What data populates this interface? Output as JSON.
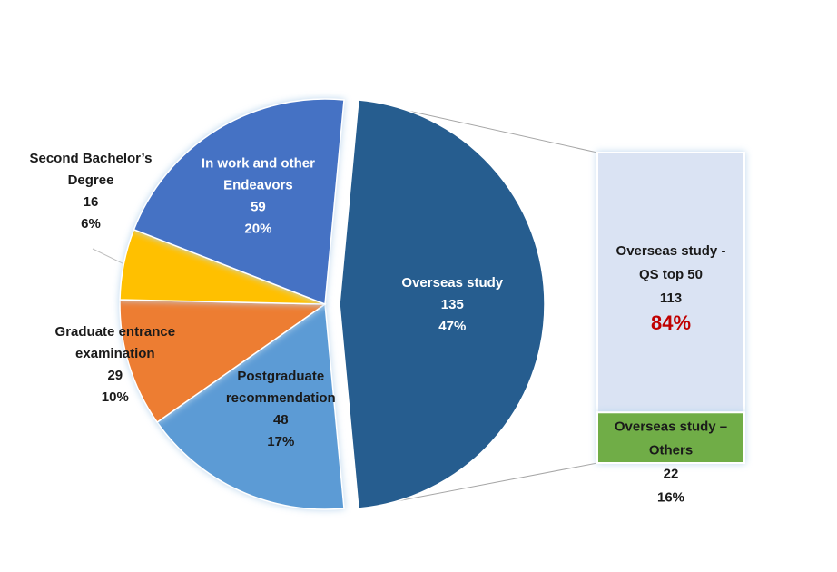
{
  "colors": {
    "overseas": "#265D8F",
    "work": "#4472C4",
    "second_bachelor": "#FFC000",
    "entrance_exam": "#ED7D31",
    "recommendation": "#5B9BD5",
    "qs_top50": "#DAE3F3",
    "others": "#70AD47",
    "accent_red": "#C00000",
    "glow": "#BDD7EE",
    "connector": "#A6A6A6"
  },
  "chart_data": [
    {
      "type": "pie",
      "title": "",
      "series": [
        {
          "slices": [
            {
              "key": "overseas",
              "label_lines": [
                "Overseas study"
              ],
              "value": 135,
              "percent": "47%"
            },
            {
              "key": "recommendation",
              "label_lines": [
                "Postgraduate",
                "recommendation"
              ],
              "value": 48,
              "percent": "17%"
            },
            {
              "key": "entrance_exam",
              "label_lines": [
                "Graduate entrance",
                "examination"
              ],
              "value": 29,
              "percent": "10%"
            },
            {
              "key": "second_bachelor",
              "label_lines": [
                "Second Bachelor’s",
                "Degree"
              ],
              "value": 16,
              "percent": "6%"
            },
            {
              "key": "work",
              "label_lines": [
                "In work and other",
                "Endeavors"
              ],
              "value": 59,
              "percent": "20%"
            }
          ]
        }
      ]
    },
    {
      "type": "bar",
      "stacked": true,
      "title": "",
      "series": [
        {
          "segments": [
            {
              "key": "qs_top50",
              "label_lines": [
                "Overseas study -",
                "QS top 50"
              ],
              "value": 113,
              "percent": "84%"
            },
            {
              "key": "others",
              "label_lines": [
                "Overseas study –",
                "Others"
              ],
              "value": 22,
              "percent": "16%"
            }
          ]
        }
      ]
    }
  ]
}
